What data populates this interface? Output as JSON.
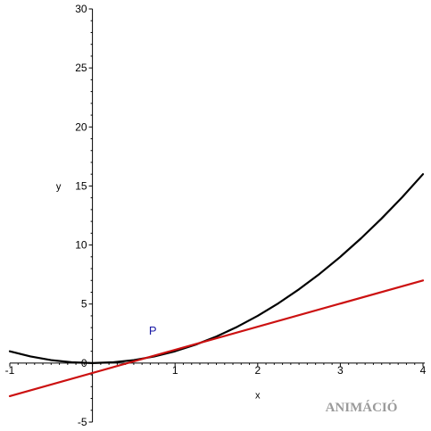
{
  "chart_data": {
    "type": "line",
    "title": "",
    "xlabel": "x",
    "ylabel": "y",
    "xlim": [
      -1,
      4
    ],
    "ylim": [
      -5,
      30
    ],
    "x_ticks": [
      "-1",
      "1",
      "2",
      "3",
      "4"
    ],
    "y_ticks": [
      "-5",
      "0",
      "5",
      "10",
      "15",
      "20",
      "25",
      "30"
    ],
    "series": [
      {
        "color": "#000000",
        "x": [
          -1.0,
          -0.75,
          -0.5,
          -0.25,
          0.0,
          0.25,
          0.5,
          0.75,
          1.0,
          1.25,
          1.5,
          1.75,
          2.0,
          2.25,
          2.5,
          2.75,
          3.0,
          3.25,
          3.5,
          3.75,
          4.0
        ],
        "y": [
          1.0,
          0.5625,
          0.25,
          0.0625,
          0.0,
          0.0625,
          0.25,
          0.5625,
          1.0,
          1.5625,
          2.25,
          3.0625,
          4.0,
          5.0625,
          6.25,
          7.5625,
          9.0,
          10.5625,
          12.25,
          14.0625,
          16.0
        ]
      },
      {
        "color": "#cc1111",
        "x": [
          -1.0,
          4.0
        ],
        "y": [
          -2.8,
          7.0
        ]
      }
    ],
    "point": {
      "label": "P",
      "x": 0.73,
      "y": 2.4,
      "color": "#1a1aa6"
    },
    "grid": false,
    "legend": "none"
  },
  "watermark": {
    "text": "ANIMÁCIÓ",
    "color": "#9a9a9a"
  }
}
